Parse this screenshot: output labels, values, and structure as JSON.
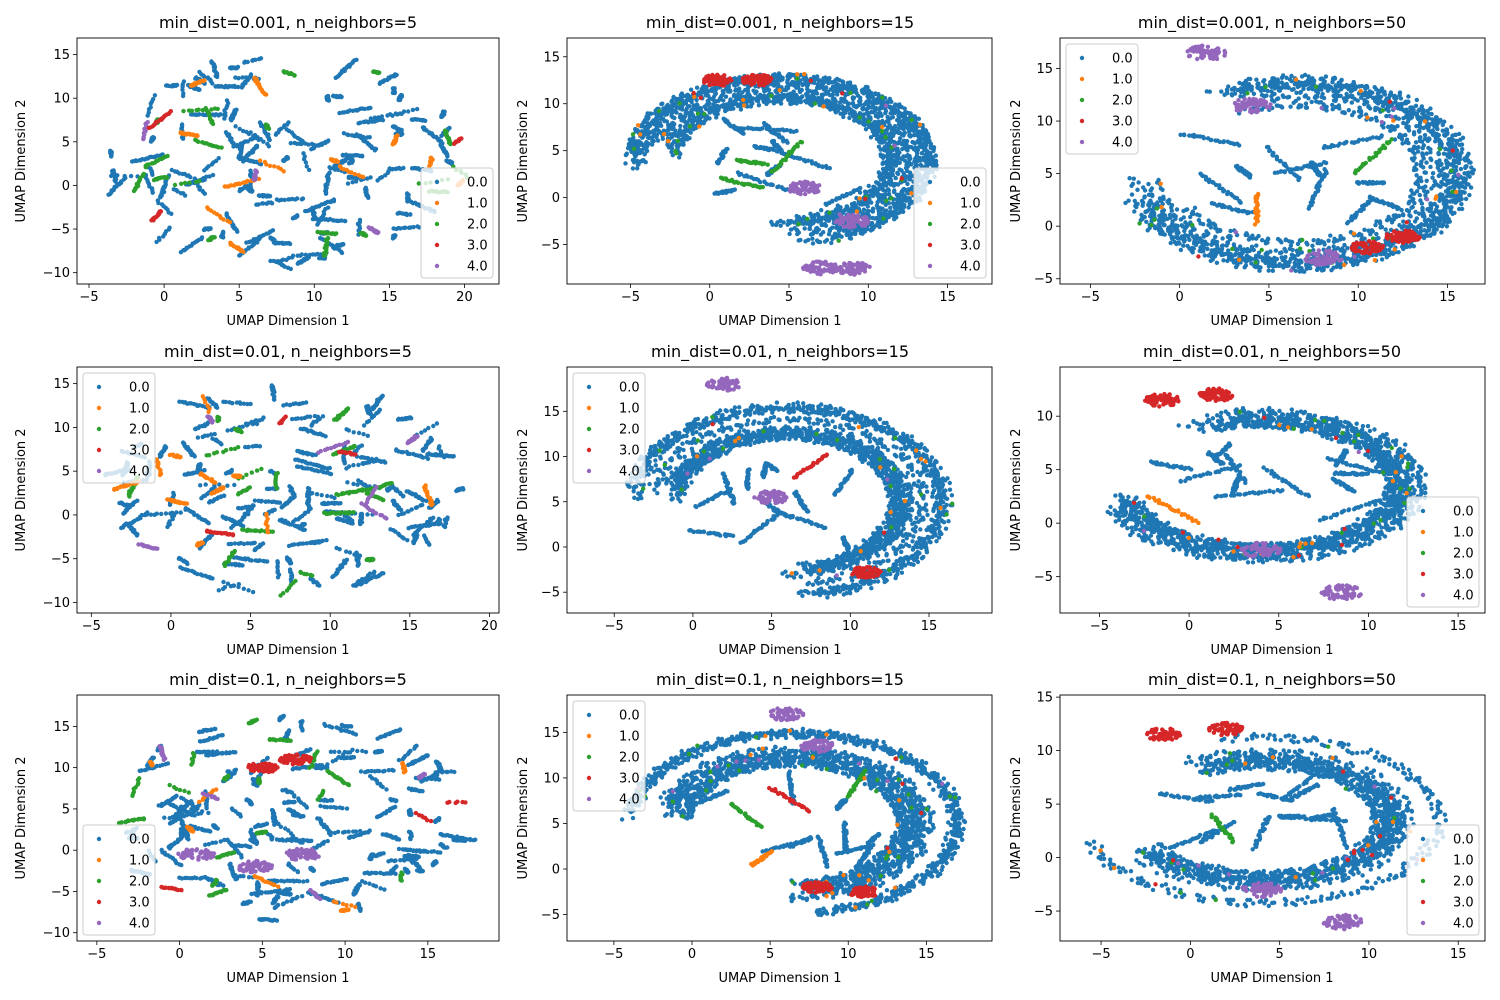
{
  "figure": {
    "width": 1500,
    "height": 1000,
    "background": "#ffffff"
  },
  "colors": {
    "0.0": "#1f77b4",
    "1.0": "#ff7f0e",
    "2.0": "#2ca02c",
    "3.0": "#d62728",
    "4.0": "#9467bd"
  },
  "chart_data": [
    {
      "type": "scatter",
      "title": "min_dist=0.001, n_neighbors=5",
      "xlabel": "UMAP Dimension 1",
      "ylabel": "UMAP Dimension 2",
      "xlim": [
        -5.8,
        22.3
      ],
      "ylim": [
        -11.3,
        16.9
      ],
      "xticks": [
        -5,
        0,
        5,
        10,
        15,
        20
      ],
      "yticks": [
        -10,
        -5,
        0,
        5,
        10,
        15
      ],
      "legend": {
        "position": "lower-right",
        "entries": [
          "0.0",
          "1.0",
          "2.0",
          "3.0",
          "4.0"
        ]
      },
      "shape": "scattered",
      "seed": 11
    },
    {
      "type": "scatter",
      "title": "min_dist=0.001, n_neighbors=15",
      "xlabel": "UMAP Dimension 1",
      "ylabel": "UMAP Dimension 2",
      "xlim": [
        -9.0,
        17.8
      ],
      "ylim": [
        -9.2,
        17.0
      ],
      "xticks": [
        -5,
        0,
        5,
        10,
        15
      ],
      "yticks": [
        -5,
        0,
        5,
        10,
        15
      ],
      "legend": {
        "position": "lower-right",
        "entries": [
          "0.0",
          "1.0",
          "2.0",
          "3.0",
          "4.0"
        ]
      },
      "shape": "ring",
      "ring": {
        "cx": 4.5,
        "cy": 4.0,
        "rx": 8.5,
        "ry": 8.0
      },
      "red_clusters": [
        [
          0.5,
          12.5
        ],
        [
          3.0,
          12.5
        ]
      ],
      "purple_clusters": [
        [
          7.0,
          -7.5
        ],
        [
          9.0,
          -7.5
        ],
        [
          6.0,
          1.0
        ],
        [
          9.0,
          -2.5
        ]
      ],
      "seed": 23
    },
    {
      "type": "scatter",
      "title": "min_dist=0.001, n_neighbors=50",
      "xlabel": "UMAP Dimension 1",
      "ylabel": "UMAP Dimension 2",
      "xlim": [
        -6.7,
        17.1
      ],
      "ylim": [
        -5.5,
        17.9
      ],
      "xticks": [
        -5,
        0,
        5,
        10,
        15
      ],
      "yticks": [
        -5,
        0,
        5,
        10,
        15
      ],
      "legend": {
        "position": "upper-left",
        "entries": [
          "0.0",
          "1.0",
          "2.0",
          "3.0",
          "4.0"
        ]
      },
      "shape": "crescent",
      "ring": {
        "cx": 6.5,
        "cy": 5.0,
        "rx": 8.5,
        "ry": 8.0
      },
      "red_clusters": [
        [
          10.5,
          -2.0
        ],
        [
          12.5,
          -1.0
        ]
      ],
      "purple_clusters": [
        [
          1.5,
          16.5
        ],
        [
          4.0,
          11.5
        ],
        [
          8.0,
          -3.0
        ]
      ],
      "seed": 37
    },
    {
      "type": "scatter",
      "title": "min_dist=0.01, n_neighbors=5",
      "xlabel": "UMAP Dimension 1",
      "ylabel": "UMAP Dimension 2",
      "xlim": [
        -5.9,
        20.6
      ],
      "ylim": [
        -11.2,
        16.9
      ],
      "xticks": [
        -5,
        0,
        5,
        10,
        15,
        20
      ],
      "yticks": [
        -10,
        -5,
        0,
        5,
        10,
        15
      ],
      "legend": {
        "position": "upper-left",
        "entries": [
          "0.0",
          "1.0",
          "2.0",
          "3.0",
          "4.0"
        ]
      },
      "shape": "scattered",
      "seed": 41
    },
    {
      "type": "scatter",
      "title": "min_dist=0.01, n_neighbors=15",
      "xlabel": "UMAP Dimension 1",
      "ylabel": "UMAP Dimension 2",
      "xlim": [
        -8.0,
        19.0
      ],
      "ylim": [
        -7.3,
        19.9
      ],
      "xticks": [
        -5,
        0,
        5,
        10,
        15
      ],
      "yticks": [
        -5,
        0,
        5,
        10,
        15
      ],
      "legend": {
        "position": "upper-left",
        "entries": [
          "0.0",
          "1.0",
          "2.0",
          "3.0",
          "4.0"
        ]
      },
      "shape": "ring",
      "ring": {
        "cx": 6.0,
        "cy": 5.0,
        "rx": 9.0,
        "ry": 9.5
      },
      "red_clusters": [
        [
          11.0,
          -2.8
        ]
      ],
      "purple_clusters": [
        [
          2.0,
          18.0
        ],
        [
          5.0,
          5.5
        ]
      ],
      "seed": 53
    },
    {
      "type": "scatter",
      "title": "min_dist=0.01, n_neighbors=50",
      "xlabel": "UMAP Dimension 1",
      "ylabel": "UMAP Dimension 2",
      "xlim": [
        -7.2,
        16.5
      ],
      "ylim": [
        -8.4,
        14.6
      ],
      "xticks": [
        -5,
        0,
        5,
        10,
        15
      ],
      "yticks": [
        -5,
        0,
        5,
        10
      ],
      "legend": {
        "position": "lower-right",
        "entries": [
          "0.0",
          "1.0",
          "2.0",
          "3.0",
          "4.0"
        ]
      },
      "shape": "crescent",
      "ring": {
        "cx": 4.0,
        "cy": 3.5,
        "rx": 9.0,
        "ry": 7.0
      },
      "red_clusters": [
        [
          -1.5,
          11.5
        ],
        [
          1.5,
          12.0
        ]
      ],
      "purple_clusters": [
        [
          8.5,
          -6.5
        ],
        [
          4.0,
          -2.5
        ]
      ],
      "seed": 67
    },
    {
      "type": "scatter",
      "title": "min_dist=0.1, n_neighbors=5",
      "xlabel": "UMAP Dimension 1",
      "ylabel": "UMAP Dimension 2",
      "xlim": [
        -6.2,
        19.3
      ],
      "ylim": [
        -11.0,
        18.8
      ],
      "xticks": [
        -5,
        0,
        5,
        10,
        15
      ],
      "yticks": [
        -10,
        -5,
        0,
        5,
        10,
        15
      ],
      "legend": {
        "position": "lower-left",
        "entries": [
          "0.0",
          "1.0",
          "2.0",
          "3.0",
          "4.0"
        ]
      },
      "shape": "scattered",
      "red_clusters": [
        [
          5.0,
          10.0
        ],
        [
          7.0,
          11.0
        ]
      ],
      "purple_clusters": [
        [
          1.0,
          -0.5
        ],
        [
          4.5,
          -2.0
        ],
        [
          7.5,
          -0.5
        ]
      ],
      "seed": 79
    },
    {
      "type": "scatter",
      "title": "min_dist=0.1, n_neighbors=15",
      "xlabel": "UMAP Dimension 1",
      "ylabel": "UMAP Dimension 2",
      "xlim": [
        -8.0,
        19.2
      ],
      "ylim": [
        -7.9,
        19.1
      ],
      "xticks": [
        -5,
        0,
        5,
        10,
        15
      ],
      "yticks": [
        -5,
        0,
        5,
        10,
        15
      ],
      "legend": {
        "position": "upper-left",
        "entries": [
          "0.0",
          "1.0",
          "2.0",
          "3.0",
          "4.0"
        ]
      },
      "shape": "ring",
      "ring": {
        "cx": 6.5,
        "cy": 5.0,
        "rx": 9.5,
        "ry": 9.0
      },
      "red_clusters": [
        [
          11.0,
          -2.5
        ],
        [
          8.0,
          -2.0
        ]
      ],
      "purple_clusters": [
        [
          6.0,
          17.0
        ],
        [
          8.0,
          13.5
        ]
      ],
      "seed": 97
    },
    {
      "type": "scatter",
      "title": "min_dist=0.1, n_neighbors=50",
      "xlabel": "UMAP Dimension 1",
      "ylabel": "UMAP Dimension 2",
      "xlim": [
        -7.3,
        16.5
      ],
      "ylim": [
        -7.8,
        15.2
      ],
      "xticks": [
        -5,
        0,
        5,
        10,
        15
      ],
      "yticks": [
        -5,
        0,
        5,
        10,
        15
      ],
      "legend": {
        "position": "lower-right",
        "entries": [
          "0.0",
          "1.0",
          "2.0",
          "3.0",
          "4.0"
        ]
      },
      "shape": "crescent",
      "ring": {
        "cx": 4.0,
        "cy": 3.5,
        "rx": 9.0,
        "ry": 7.0
      },
      "red_clusters": [
        [
          -1.5,
          11.5
        ],
        [
          2.0,
          12.0
        ]
      ],
      "purple_clusters": [
        [
          8.5,
          -6.0
        ],
        [
          4.0,
          -3.0
        ]
      ],
      "seed": 113
    }
  ]
}
